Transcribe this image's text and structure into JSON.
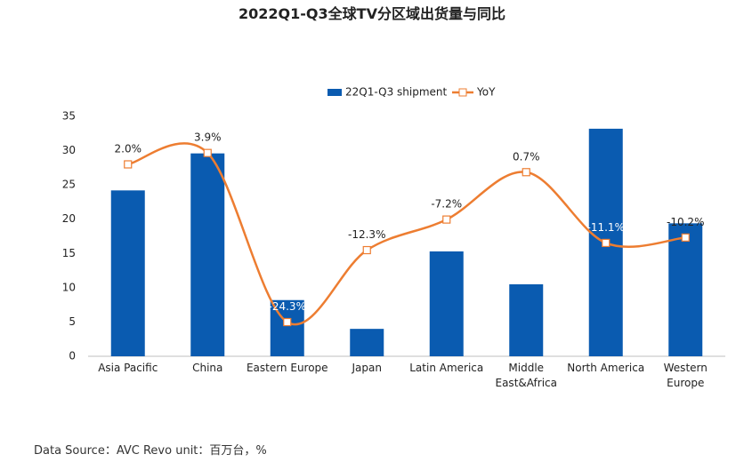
{
  "chart_data": {
    "type": "bar_line",
    "title": "2022Q1-Q3全球TV分区域出货量与同比",
    "source": "Data Source：AVC Revo  unit：百万台，%",
    "categories": [
      "Asia Pacific",
      "China",
      "Eastern Europe",
      "Japan",
      "Latin America",
      "Middle\nEast&Africa",
      "North America",
      "Western\nEurope"
    ],
    "series": [
      {
        "name": "22Q1-Q3 shipment",
        "type": "bar",
        "color": "#0a5bb0",
        "values": [
          24.2,
          29.6,
          8.2,
          4.0,
          15.3,
          10.5,
          33.2,
          19.4
        ]
      },
      {
        "name": "YoY",
        "type": "line",
        "axis": "y2",
        "color": "#ed7d31",
        "values": [
          2.0,
          3.9,
          -24.3,
          -12.3,
          -7.2,
          0.7,
          -11.1,
          -10.2
        ],
        "value_labels": [
          "2.0%",
          "3.9%",
          "-24.3%",
          "-12.3%",
          "-7.2%",
          "0.7%",
          "-11.1%",
          "-10.2%"
        ]
      }
    ],
    "ylim": [
      0,
      35
    ],
    "yticks": [
      0,
      5,
      10,
      15,
      20,
      25,
      30,
      35
    ],
    "y2lim": [
      -30,
      10
    ],
    "grid": false,
    "legend": "top"
  }
}
